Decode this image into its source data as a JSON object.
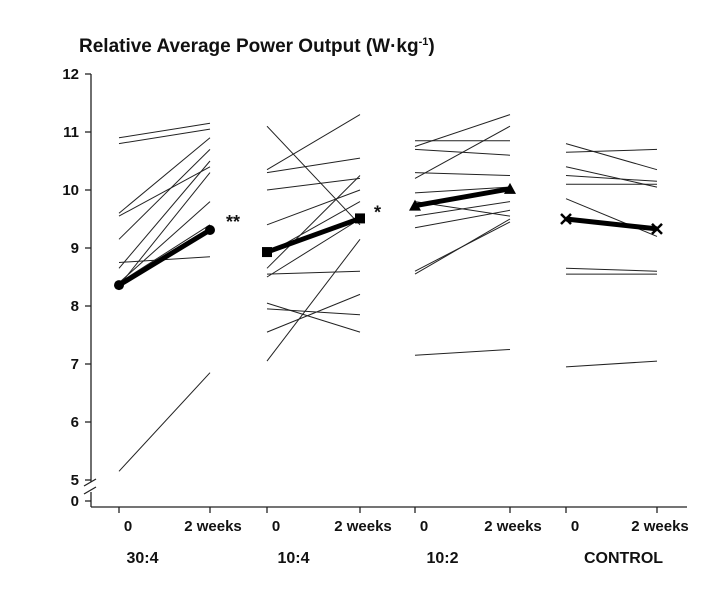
{
  "chart_data": {
    "type": "line",
    "title": "Relative Average Power Output (W·kg",
    "title_superscript": "-1",
    "title_suffix": ")",
    "ylim": [
      5,
      12
    ],
    "y_ticks": [
      "12",
      "11",
      "10",
      "9",
      "8",
      "7",
      "6",
      "5",
      "0"
    ],
    "y_break": true,
    "x_tick_labels": [
      "0",
      "2 weeks"
    ],
    "groups": [
      {
        "name": "30:4",
        "significance": "**",
        "mean": {
          "marker": "circle",
          "values": [
            8.36,
            9.31
          ]
        },
        "individuals": [
          [
            10.9,
            11.15
          ],
          [
            10.8,
            11.05
          ],
          [
            9.6,
            10.9
          ],
          [
            9.55,
            10.4
          ],
          [
            9.15,
            10.7
          ],
          [
            8.75,
            8.85
          ],
          [
            8.65,
            10.5
          ],
          [
            8.4,
            9.8
          ],
          [
            8.4,
            9.4
          ],
          [
            8.35,
            10.3
          ],
          [
            5.15,
            6.85
          ]
        ]
      },
      {
        "name": "10:4",
        "significance": "*",
        "mean": {
          "marker": "square",
          "values": [
            8.93,
            9.51
          ]
        },
        "individuals": [
          [
            11.1,
            9.4
          ],
          [
            10.35,
            11.3
          ],
          [
            10.3,
            10.55
          ],
          [
            10.0,
            10.2
          ],
          [
            9.4,
            10.0
          ],
          [
            8.9,
            9.8
          ],
          [
            8.65,
            10.25
          ],
          [
            8.55,
            8.6
          ],
          [
            8.5,
            9.5
          ],
          [
            8.05,
            7.55
          ],
          [
            7.95,
            7.85
          ],
          [
            7.55,
            8.2
          ],
          [
            7.05,
            9.15
          ]
        ]
      },
      {
        "name": "10:2",
        "significance": "",
        "mean": {
          "marker": "triangle",
          "values": [
            9.73,
            10.02
          ]
        },
        "individuals": [
          [
            10.85,
            10.85
          ],
          [
            10.75,
            11.3
          ],
          [
            10.7,
            10.6
          ],
          [
            10.3,
            10.25
          ],
          [
            10.2,
            11.1
          ],
          [
            9.95,
            10.05
          ],
          [
            9.8,
            9.55
          ],
          [
            9.55,
            9.8
          ],
          [
            9.35,
            9.65
          ],
          [
            8.6,
            9.45
          ],
          [
            8.55,
            9.5
          ],
          [
            7.15,
            7.25
          ]
        ]
      },
      {
        "name": "CONTROL",
        "significance": "",
        "mean": {
          "marker": "cross",
          "values": [
            9.5,
            9.33
          ]
        },
        "individuals": [
          [
            10.8,
            10.35
          ],
          [
            10.65,
            10.7
          ],
          [
            10.4,
            10.05
          ],
          [
            10.25,
            10.15
          ],
          [
            10.1,
            10.1
          ],
          [
            9.85,
            9.2
          ],
          [
            8.65,
            8.6
          ],
          [
            8.55,
            8.55
          ],
          [
            6.95,
            7.05
          ]
        ]
      }
    ]
  }
}
